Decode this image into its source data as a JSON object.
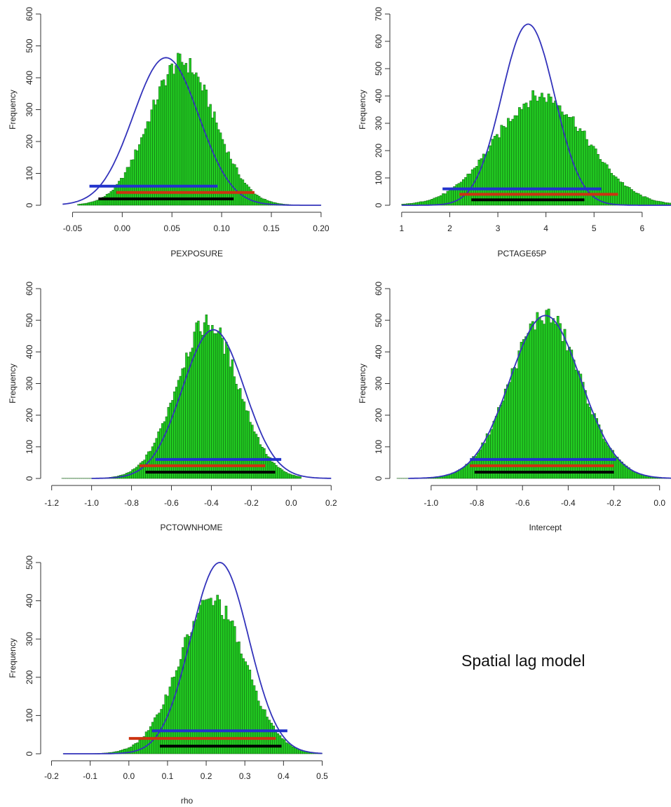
{
  "caption": "Spatial lag model",
  "colors": {
    "bar_fill": "#22cc22",
    "bar_edge": "#0e5a0e",
    "curve": "#3333bb",
    "interval_blue": "#2233cc",
    "interval_red": "#cc3311",
    "interval_black": "#000000"
  },
  "chart_data": [
    {
      "type": "bar",
      "xlabel": "PEXPOSURE",
      "ylabel": "Frequency",
      "xlim": [
        -0.075,
        0.205
      ],
      "ylim": [
        0,
        600
      ],
      "xticks": [
        -0.05,
        0.0,
        0.05,
        0.1,
        0.15,
        0.2
      ],
      "xtick_labels": [
        "-0.05",
        "0.00",
        "0.05",
        "0.10",
        "0.15",
        "0.20"
      ],
      "yticks": [
        0,
        100,
        200,
        300,
        400,
        500,
        600
      ],
      "hist": {
        "min": -0.045,
        "max": 0.2,
        "bins": 120,
        "mean": 0.06,
        "sd": 0.033,
        "peak": 450
      },
      "curve": {
        "mean": 0.044,
        "sd": 0.033,
        "peak": 463,
        "from": -0.06,
        "to": 0.2
      },
      "intervals": [
        {
          "color": "blue",
          "from": -0.033,
          "to": 0.096,
          "y": 60
        },
        {
          "color": "red",
          "from": -0.006,
          "to": 0.133,
          "y": 40
        },
        {
          "color": "black",
          "from": -0.024,
          "to": 0.112,
          "y": 20
        }
      ]
    },
    {
      "type": "bar",
      "xlabel": "PCTAGE65P",
      "ylabel": "Frequency",
      "xlim": [
        0.9,
        6.6
      ],
      "ylim": [
        0,
        700
      ],
      "xticks": [
        1,
        2,
        3,
        4,
        5,
        6
      ],
      "xtick_labels": [
        "1",
        "2",
        "3",
        "4",
        "5",
        "6"
      ],
      "yticks": [
        0,
        100,
        200,
        300,
        400,
        500,
        600,
        700
      ],
      "hist": {
        "min": 1.0,
        "max": 6.6,
        "bins": 120,
        "mean": 3.9,
        "sd": 0.95,
        "peak": 400
      },
      "curve": {
        "mean": 3.63,
        "sd": 0.55,
        "peak": 663,
        "from": 1.0,
        "to": 6.6
      },
      "intervals": [
        {
          "color": "blue",
          "from": 1.85,
          "to": 5.15,
          "y": 60
        },
        {
          "color": "red",
          "from": 2.2,
          "to": 5.5,
          "y": 40
        },
        {
          "color": "black",
          "from": 2.45,
          "to": 4.8,
          "y": 20
        }
      ]
    },
    {
      "type": "bar",
      "xlabel": "PCTOWNHOME",
      "ylabel": "Frequency",
      "xlim": [
        -1.22,
        0.22
      ],
      "ylim": [
        0,
        600
      ],
      "xticks": [
        -1.2,
        -1.0,
        -0.8,
        -0.6,
        -0.4,
        -0.2,
        0.0,
        0.2
      ],
      "xtick_labels": [
        "-1.2",
        "-1.0",
        "-0.8",
        "-0.6",
        "-0.4",
        "-0.2",
        "0.0",
        "0.2"
      ],
      "yticks": [
        0,
        100,
        200,
        300,
        400,
        500,
        600
      ],
      "hist": {
        "min": -1.15,
        "max": 0.05,
        "bins": 120,
        "mean": -0.42,
        "sd": 0.155,
        "peak": 490
      },
      "curve": {
        "mean": -0.39,
        "sd": 0.155,
        "peak": 470,
        "from": -1.0,
        "to": 0.2
      },
      "intervals": [
        {
          "color": "blue",
          "from": -0.68,
          "to": -0.05,
          "y": 60
        },
        {
          "color": "red",
          "from": -0.76,
          "to": -0.13,
          "y": 40
        },
        {
          "color": "black",
          "from": -0.73,
          "to": -0.08,
          "y": 20
        }
      ]
    },
    {
      "type": "bar",
      "xlabel": "Intercept",
      "ylabel": "Frequency",
      "xlim": [
        -1.15,
        0.05
      ],
      "ylim": [
        0,
        600
      ],
      "xticks": [
        -1.0,
        -0.8,
        -0.6,
        -0.4,
        -0.2,
        0.0
      ],
      "xtick_labels": [
        "-1.0",
        "-0.8",
        "-0.6",
        "-0.4",
        "-0.2",
        "0.0"
      ],
      "yticks": [
        0,
        100,
        200,
        300,
        400,
        500,
        600
      ],
      "hist": {
        "min": -1.15,
        "max": 0.05,
        "bins": 120,
        "mean": -0.5,
        "sd": 0.155,
        "peak": 515
      },
      "curve": {
        "mean": -0.5,
        "sd": 0.155,
        "peak": 515,
        "from": -1.1,
        "to": 0.05
      },
      "intervals": [
        {
          "color": "blue",
          "from": -0.83,
          "to": -0.19,
          "y": 60
        },
        {
          "color": "red",
          "from": -0.83,
          "to": -0.2,
          "y": 40
        },
        {
          "color": "black",
          "from": -0.81,
          "to": -0.2,
          "y": 20
        }
      ]
    },
    {
      "type": "bar",
      "xlabel": "rho",
      "ylabel": "Frequency",
      "xlim": [
        -0.21,
        0.51
      ],
      "ylim": [
        0,
        500
      ],
      "xticks": [
        -0.2,
        -0.1,
        0.0,
        0.1,
        0.2,
        0.3,
        0.4,
        0.5
      ],
      "xtick_labels": [
        "-0.2",
        "-0.1",
        "0.0",
        "0.1",
        "0.2",
        "0.3",
        "0.4",
        "0.5"
      ],
      "yticks": [
        0,
        100,
        200,
        300,
        400,
        500
      ],
      "hist": {
        "min": -0.17,
        "max": 0.5,
        "bins": 120,
        "mean": 0.215,
        "sd": 0.085,
        "peak": 400
      },
      "curve": {
        "mean": 0.235,
        "sd": 0.075,
        "peak": 500,
        "from": -0.17,
        "to": 0.5
      },
      "intervals": [
        {
          "color": "blue",
          "from": 0.06,
          "to": 0.41,
          "y": 60
        },
        {
          "color": "red",
          "from": 0.0,
          "to": 0.38,
          "y": 40
        },
        {
          "color": "black",
          "from": 0.08,
          "to": 0.395,
          "y": 20
        }
      ]
    }
  ]
}
